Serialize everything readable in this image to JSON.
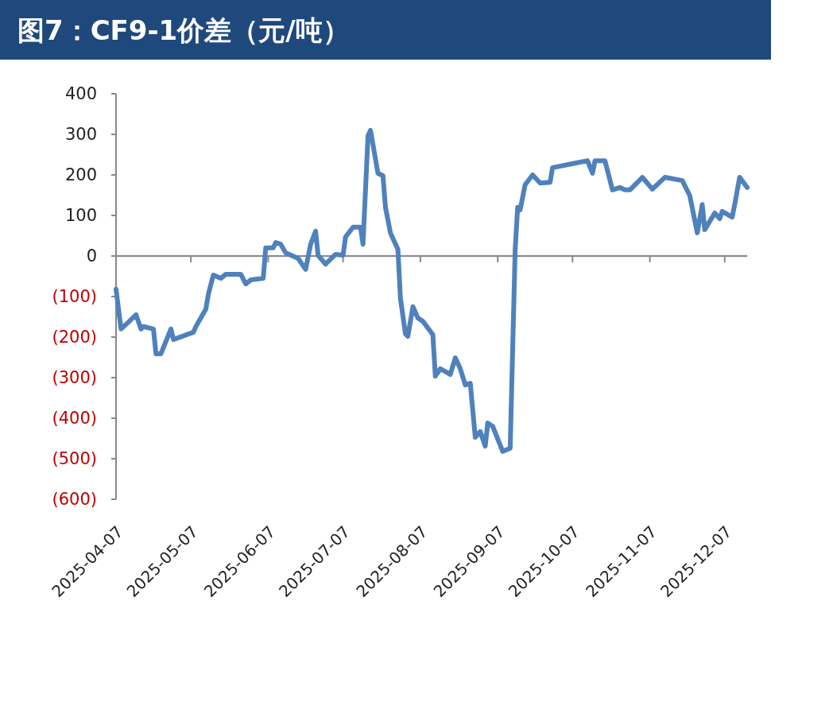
{
  "chart_data": {
    "type": "line",
    "title": "图7：CF9-1价差（元/吨）",
    "xlim": [
      "2025-04-07",
      "2025-12-16"
    ],
    "xticks": [
      "2025-04-07",
      "2025-05-07",
      "2025-06-07",
      "2025-07-07",
      "2025-08-07",
      "2025-09-07",
      "2025-10-07",
      "2025-11-07",
      "2025-12-07"
    ],
    "ylim": [
      -600,
      400
    ],
    "yticks": [
      400,
      300,
      200,
      100,
      0,
      {
        "value": -100,
        "label": "(100)"
      },
      {
        "value": -200,
        "label": "(200)"
      },
      {
        "value": -300,
        "label": "(300)"
      },
      {
        "value": -400,
        "label": "(400)"
      },
      {
        "value": -500,
        "label": "(500)"
      },
      {
        "value": -600,
        "label": "(600)"
      }
    ],
    "marker": "none",
    "line_style": "solid",
    "x": [
      "2025-04-07",
      "2025-04-09",
      "2025-04-12",
      "2025-04-15",
      "2025-04-17",
      "2025-04-18",
      "2025-04-22",
      "2025-04-23",
      "2025-04-25",
      "2025-04-29",
      "2025-04-30",
      "2025-05-08",
      "2025-05-09",
      "2025-05-13",
      "2025-05-14",
      "2025-05-16",
      "2025-05-19",
      "2025-05-21",
      "2025-05-27",
      "2025-05-29",
      "2025-05-31",
      "2025-06-05",
      "2025-06-06",
      "2025-06-09",
      "2025-06-10",
      "2025-06-12",
      "2025-06-14",
      "2025-06-19",
      "2025-06-22",
      "2025-06-24",
      "2025-06-26",
      "2025-06-27",
      "2025-06-30",
      "2025-07-04",
      "2025-07-07",
      "2025-07-08",
      "2025-07-11",
      "2025-07-14",
      "2025-07-15",
      "2025-07-17",
      "2025-07-18",
      "2025-07-21",
      "2025-07-23",
      "2025-07-24",
      "2025-07-26",
      "2025-07-29",
      "2025-07-30",
      "2025-08-01",
      "2025-08-02",
      "2025-08-04",
      "2025-08-06",
      "2025-08-08",
      "2025-08-12",
      "2025-08-13",
      "2025-08-15",
      "2025-08-19",
      "2025-08-21",
      "2025-08-23",
      "2025-08-25",
      "2025-08-27",
      "2025-08-29",
      "2025-08-31",
      "2025-09-02",
      "2025-09-03",
      "2025-09-05",
      "2025-09-09",
      "2025-09-12",
      "2025-09-14",
      "2025-09-15",
      "2025-09-16",
      "2025-09-18",
      "2025-09-21",
      "2025-09-24",
      "2025-09-28",
      "2025-09-29",
      "2025-10-08",
      "2025-10-13",
      "2025-10-15",
      "2025-10-16",
      "2025-10-20",
      "2025-10-23",
      "2025-10-26",
      "2025-10-28",
      "2025-10-30",
      "2025-11-04",
      "2025-11-08",
      "2025-11-13",
      "2025-11-20",
      "2025-11-23",
      "2025-11-26",
      "2025-11-28",
      "2025-11-29",
      "2025-12-03",
      "2025-12-05",
      "2025-12-06",
      "2025-12-10",
      "2025-12-11",
      "2025-12-13",
      "2025-12-16"
    ],
    "series": [
      {
        "color": "#4f81bd",
        "values": [
          -82,
          -180,
          -163,
          -145,
          -180,
          -174,
          -180,
          -241,
          -241,
          -180,
          -206,
          -188,
          -174,
          -131,
          -94,
          -47,
          -55,
          -45,
          -45,
          -69,
          -59,
          -55,
          20,
          20,
          33,
          29,
          8,
          -6,
          -33,
          29,
          61,
          2,
          -20,
          4,
          2,
          47,
          71,
          71,
          29,
          296,
          310,
          204,
          198,
          120,
          57,
          16,
          -104,
          -192,
          -198,
          -125,
          -153,
          -161,
          -194,
          -296,
          -278,
          -292,
          -251,
          -278,
          -318,
          -314,
          -447,
          -433,
          -469,
          -412,
          -420,
          -482,
          -474,
          16,
          120,
          114,
          176,
          200,
          180,
          182,
          218,
          229,
          235,
          204,
          235,
          235,
          163,
          169,
          163,
          163,
          194,
          165,
          194,
          186,
          149,
          57,
          127,
          65,
          106,
          92,
          110,
          96,
          127,
          194,
          169
        ]
      }
    ]
  }
}
